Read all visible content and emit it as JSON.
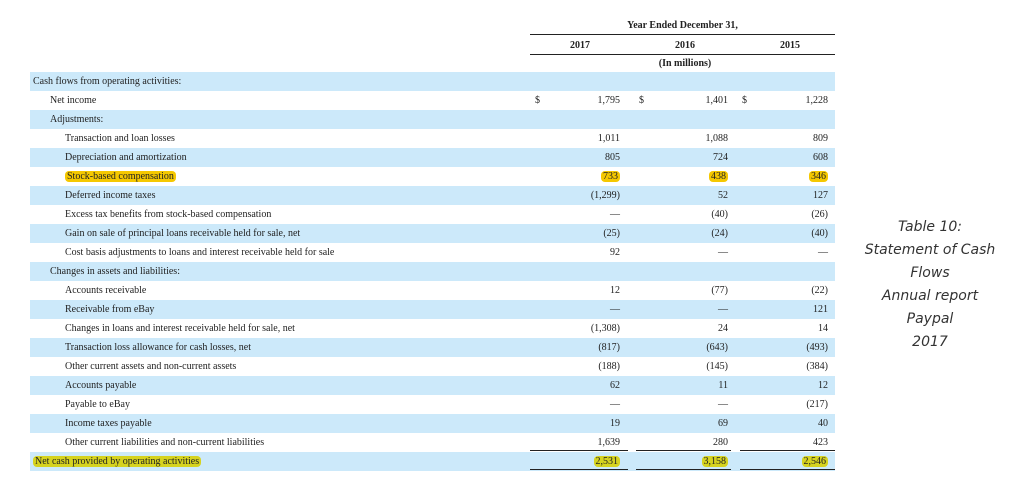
{
  "header": {
    "period": "Year Ended December 31,",
    "years": [
      "2017",
      "2016",
      "2015"
    ],
    "units": "(In millions)"
  },
  "rows": [
    {
      "label": "Cash flows from operating activities:",
      "indent": 0,
      "values": [
        "",
        "",
        ""
      ]
    },
    {
      "label": "Net income",
      "indent": 1,
      "values": [
        "1,795",
        "1,401",
        "1,228"
      ],
      "dollar": "$"
    },
    {
      "label": "Adjustments:",
      "indent": 1,
      "values": [
        "",
        "",
        ""
      ]
    },
    {
      "label": "Transaction and loan losses",
      "indent": 2,
      "values": [
        "1,011",
        "1,088",
        "809"
      ]
    },
    {
      "label": "Depreciation and amortization",
      "indent": 2,
      "values": [
        "805",
        "724",
        "608"
      ]
    },
    {
      "label": "Stock-based compensation",
      "indent": 2,
      "values": [
        "733",
        "438",
        "346"
      ],
      "highlight": "#f5c800"
    },
    {
      "label": "Deferred income taxes",
      "indent": 2,
      "values": [
        "(1,299)",
        "52",
        "127"
      ]
    },
    {
      "label": "Excess tax benefits from stock-based compensation",
      "indent": 2,
      "values": [
        "—",
        "(40)",
        "(26)"
      ]
    },
    {
      "label": "Gain on sale of principal loans receivable held for sale, net",
      "indent": 2,
      "values": [
        "(25)",
        "(24)",
        "(40)"
      ]
    },
    {
      "label": "Cost basis adjustments to loans and interest receivable held for sale",
      "indent": 2,
      "values": [
        "92",
        "—",
        "—"
      ]
    },
    {
      "label": "Changes in assets and liabilities:",
      "indent": 1,
      "values": [
        "",
        "",
        ""
      ]
    },
    {
      "label": "Accounts receivable",
      "indent": 2,
      "values": [
        "12",
        "(77)",
        "(22)"
      ]
    },
    {
      "label": "Receivable from eBay",
      "indent": 2,
      "values": [
        "—",
        "—",
        "121"
      ]
    },
    {
      "label": "Changes in loans and interest receivable held for sale, net",
      "indent": 2,
      "values": [
        "(1,308)",
        "24",
        "14"
      ]
    },
    {
      "label": "Transaction loss allowance for cash losses, net",
      "indent": 2,
      "values": [
        "(817)",
        "(643)",
        "(493)"
      ]
    },
    {
      "label": "Other current assets and non-current assets",
      "indent": 2,
      "values": [
        "(188)",
        "(145)",
        "(384)"
      ]
    },
    {
      "label": "Accounts payable",
      "indent": 2,
      "values": [
        "62",
        "11",
        "12"
      ]
    },
    {
      "label": "Payable to eBay",
      "indent": 2,
      "values": [
        "—",
        "—",
        "(217)"
      ]
    },
    {
      "label": "Income taxes payable",
      "indent": 2,
      "values": [
        "19",
        "69",
        "40"
      ]
    },
    {
      "label": "Other current liabilities and non-current liabilities",
      "indent": 2,
      "values": [
        "1,639",
        "280",
        "423"
      ]
    },
    {
      "label": "Net cash provided by operating activities",
      "indent": 0,
      "values": [
        "2,531",
        "3,158",
        "2,546"
      ],
      "highlight": "#d6d320"
    }
  ],
  "caption": [
    "Table 10:",
    "Statement of Cash",
    "Flows",
    "Annual report",
    "Paypal",
    "2017"
  ],
  "colors": {
    "band": "#cce9fa",
    "highlight_stock": "#f5c800",
    "highlight_total": "#d6d320"
  }
}
